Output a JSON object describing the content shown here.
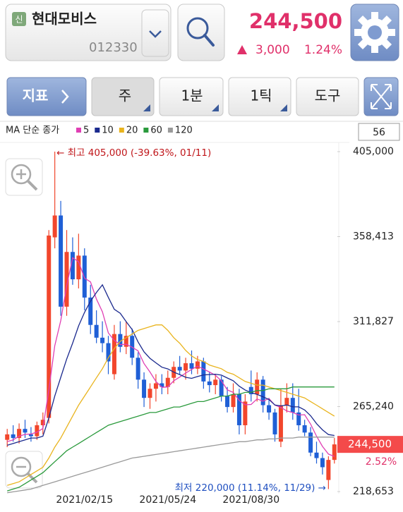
{
  "header": {
    "badge": "신",
    "name": "현대모비스",
    "code": "012330",
    "price": "244,500",
    "change": "3,000",
    "change_pct": "1.24%"
  },
  "toolbar": {
    "indicator": "지표",
    "period": "주",
    "minute": "1분",
    "tick": "1틱",
    "tools": "도구"
  },
  "chart_data": {
    "type": "candlestick",
    "visible_count": 56,
    "categories": [
      null,
      null,
      null,
      null,
      null,
      null,
      null,
      null,
      null,
      null,
      null,
      null,
      null,
      "2021/02/15",
      null,
      null,
      null,
      null,
      null,
      null,
      null,
      null,
      null,
      null,
      null,
      null,
      null,
      "2021/05/24",
      null,
      null,
      null,
      null,
      null,
      null,
      null,
      null,
      null,
      null,
      null,
      null,
      null,
      "2021/08/30",
      null,
      null,
      null,
      null,
      null,
      null,
      null,
      null,
      null,
      null,
      null,
      null,
      null,
      null
    ],
    "open": [
      247000,
      250000,
      248000,
      253000,
      250000,
      249000,
      255000,
      259000,
      358000,
      370000,
      320000,
      350000,
      335000,
      348000,
      325000,
      310000,
      303000,
      300000,
      283000,
      305000,
      298000,
      304000,
      292000,
      280000,
      270000,
      275000,
      278000,
      276000,
      281000,
      287000,
      285000,
      289000,
      286000,
      290000,
      279000,
      277000,
      280000,
      271000,
      265000,
      272000,
      255000,
      276000,
      272000,
      280000,
      266000,
      262000,
      246000,
      266000,
      270000,
      262000,
      255000,
      251000,
      240000,
      237000,
      225000,
      236000
    ],
    "high": [
      253000,
      255000,
      256000,
      258000,
      254000,
      257000,
      262000,
      362000,
      405000,
      378000,
      362000,
      358000,
      360000,
      352000,
      332000,
      318000,
      312000,
      304000,
      310000,
      312000,
      312000,
      308000,
      295000,
      284000,
      278000,
      283000,
      283000,
      285000,
      290000,
      293000,
      292000,
      296000,
      293000,
      292000,
      284000,
      283000,
      282000,
      276000,
      278000,
      275000,
      272000,
      285000,
      284000,
      282000,
      270000,
      264000,
      275000,
      278000,
      278000,
      275000,
      258000,
      254000,
      246000,
      240000,
      238000,
      248000
    ],
    "low": [
      243000,
      246000,
      245000,
      248000,
      246000,
      247000,
      250000,
      256000,
      352000,
      315000,
      315000,
      332000,
      330000,
      318000,
      305000,
      300000,
      295000,
      283000,
      280000,
      295000,
      294000,
      288000,
      275000,
      265000,
      264000,
      268000,
      272000,
      272000,
      278000,
      283000,
      280000,
      283000,
      283000,
      275000,
      273000,
      272000,
      268000,
      262000,
      262000,
      250000,
      250000,
      268000,
      268000,
      262000,
      258000,
      246000,
      243000,
      262000,
      258000,
      252000,
      249000,
      238000,
      234000,
      228000,
      220000,
      234000
    ],
    "close": [
      250000,
      248000,
      253000,
      251000,
      249000,
      255000,
      258000,
      359000,
      370000,
      320000,
      350000,
      335000,
      348000,
      325000,
      310000,
      303000,
      300000,
      290000,
      305000,
      298000,
      304000,
      292000,
      280000,
      270000,
      275000,
      278000,
      276000,
      281000,
      287000,
      285000,
      289000,
      286000,
      290000,
      279000,
      277000,
      280000,
      271000,
      265000,
      272000,
      255000,
      268000,
      272000,
      280000,
      266000,
      262000,
      250000,
      266000,
      270000,
      262000,
      255000,
      251000,
      240000,
      237000,
      232000,
      236000,
      244500
    ],
    "up_color": "#f2462c",
    "down_color": "#1f5fd6",
    "ma_label": "MA 단순 종가",
    "ma_series": [
      {
        "name": "5",
        "color": "#e03fb4",
        "values": [
          246000,
          247000,
          249000,
          250000,
          250200,
          251200,
          253200,
          274400,
          298600,
          312400,
          331400,
          346800,
          344600,
          335600,
          333600,
          324200,
          317200,
          305600,
          301600,
          299200,
          299400,
          297800,
          295800,
          288800,
          284200,
          279000,
          275800,
          276000,
          279400,
          281400,
          283600,
          285600,
          287400,
          285800,
          284200,
          282400,
          279400,
          274400,
          273000,
          268600,
          266200,
          266400,
          269400,
          268200,
          269600,
          266000,
          264800,
          262800,
          262000,
          260600,
          260800,
          255600,
          249000,
          243400,
          239200,
          237900
        ]
      },
      {
        "name": "10",
        "color": "#1b2a8e",
        "values": [
          244000,
          245000,
          246000,
          247000,
          248000,
          248000,
          249000,
          259000,
          271000,
          281300,
          291300,
          300000,
          309500,
          316900,
          323000,
          327800,
          332000,
          325100,
          318600,
          316400,
          311800,
          307500,
          300700,
          295200,
          291700,
          289200,
          286800,
          285900,
          284100,
          282800,
          281300,
          280700,
          281700,
          282600,
          282800,
          283000,
          282500,
          280900,
          279400,
          276400,
          274300,
          272900,
          271900,
          270600,
          269100,
          266100,
          265600,
          266100,
          265100,
          265100,
          263400,
          260200,
          255900,
          252500,
          249900,
          249400
        ]
      },
      {
        "name": "20",
        "color": "#e9b41e",
        "values": [
          222000,
          223000,
          224000,
          226000,
          228000,
          230000,
          232000,
          237000,
          243000,
          248000,
          254000,
          260000,
          266000,
          271000,
          276000,
          281000,
          286000,
          292000,
          297000,
          301000,
          303000,
          305000,
          307000,
          308000,
          309000,
          310000,
          310000,
          307000,
          303000,
          300000,
          296000,
          293000,
          291000,
          290000,
          288000,
          287000,
          286000,
          284000,
          283000,
          281000,
          279000,
          278000,
          277000,
          277000,
          276000,
          275000,
          274000,
          273000,
          272000,
          271000,
          270000,
          268000,
          266000,
          264000,
          262000,
          260000
        ]
      },
      {
        "name": "60",
        "color": "#2a9a3c",
        "values": [
          219000,
          220000,
          221000,
          223000,
          225000,
          227000,
          229000,
          232000,
          235000,
          238000,
          241000,
          243000,
          245000,
          247000,
          249000,
          251000,
          253000,
          255000,
          256000,
          257000,
          258000,
          259000,
          260000,
          261000,
          262000,
          262000,
          263000,
          264000,
          265000,
          265000,
          266000,
          267000,
          268000,
          268000,
          269000,
          270000,
          271000,
          271000,
          272000,
          272000,
          273000,
          273000,
          274000,
          274000,
          275000,
          275000,
          275000,
          275000,
          276000,
          276000,
          276000,
          276000,
          276000,
          276000,
          276000,
          276000
        ]
      },
      {
        "name": "120",
        "color": "#9a9a9a",
        "values": [
          218000,
          218500,
          219000,
          219500,
          220000,
          221000,
          222000,
          223000,
          224000,
          225000,
          226000,
          227000,
          228000,
          229000,
          230000,
          231000,
          232000,
          233000,
          234000,
          235000,
          236000,
          237000,
          237500,
          238000,
          238500,
          239000,
          239500,
          240000,
          240500,
          241000,
          241500,
          242000,
          242500,
          243000,
          243500,
          244000,
          244500,
          245000,
          245500,
          246000,
          246000,
          246500,
          247000,
          247000,
          247500,
          247500,
          248000,
          248000,
          248000,
          248500,
          248500,
          248500,
          248500,
          248500,
          248500,
          248500
        ]
      }
    ],
    "ylim": [
      218653,
      405000
    ],
    "yticks": [
      {
        "value": 405000,
        "label": "405,000"
      },
      {
        "value": 358413,
        "label": "358,413"
      },
      {
        "value": 311827,
        "label": "311,827"
      },
      {
        "value": 265240,
        "label": "265,240"
      },
      {
        "value": 218653,
        "label": "218,653"
      }
    ],
    "grid": false,
    "last_price": {
      "value": 244500,
      "label": "244,500"
    },
    "last_note": "2.52%",
    "annotations": [
      "← 최고 405,000 (-39.63%, 01/11)",
      "최저 220,000 (11.14%, 11/29) →"
    ]
  }
}
